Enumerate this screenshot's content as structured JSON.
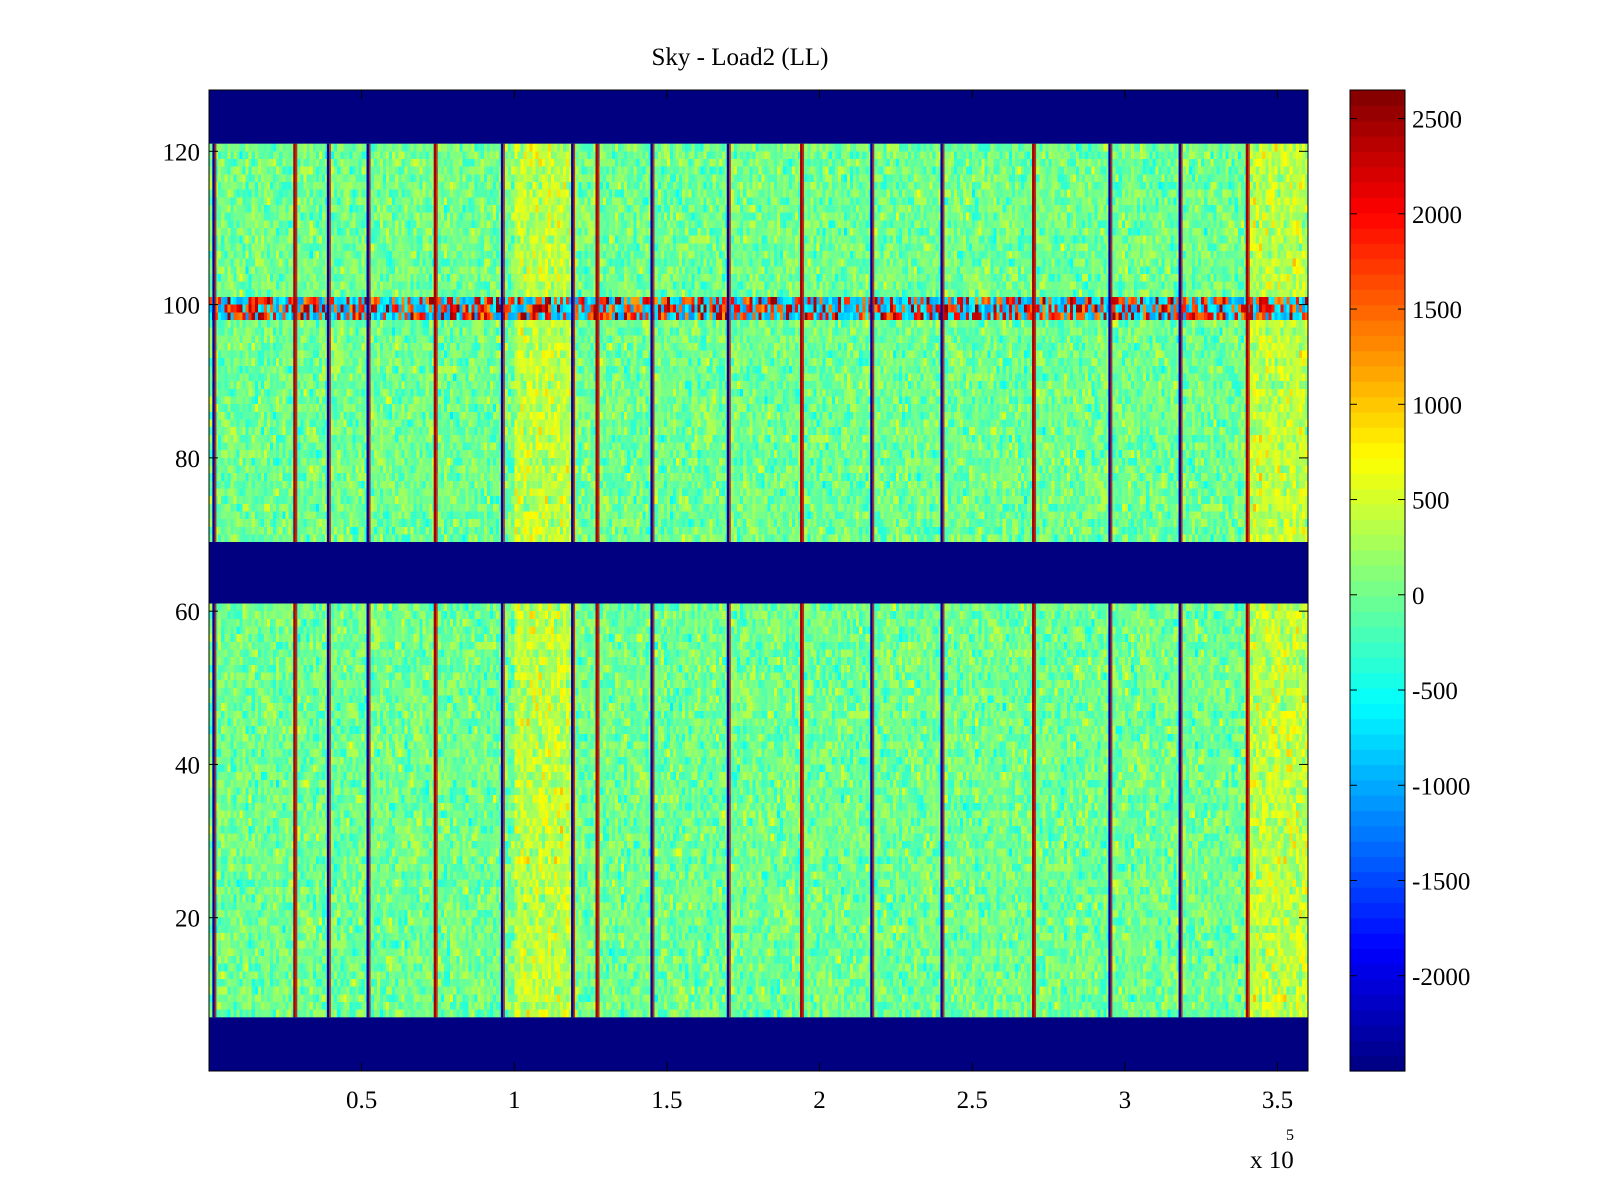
{
  "chart_data": {
    "type": "heatmap",
    "title": "Sky - Load2 (LL)",
    "xlabel": "",
    "ylabel": "",
    "x_multiplier_label": "x 10",
    "x_multiplier_exponent": "5",
    "xlim": [
      0,
      360000
    ],
    "ylim": [
      0,
      128
    ],
    "x_ticks": [
      {
        "value": 50000,
        "label": "0.5"
      },
      {
        "value": 100000,
        "label": "1"
      },
      {
        "value": 150000,
        "label": "1.5"
      },
      {
        "value": 200000,
        "label": "2"
      },
      {
        "value": 250000,
        "label": "2.5"
      },
      {
        "value": 300000,
        "label": "3"
      },
      {
        "value": 350000,
        "label": "3.5"
      }
    ],
    "y_ticks": [
      {
        "value": 20,
        "label": "20"
      },
      {
        "value": 40,
        "label": "40"
      },
      {
        "value": 60,
        "label": "60"
      },
      {
        "value": 80,
        "label": "80"
      },
      {
        "value": 100,
        "label": "100"
      },
      {
        "value": 120,
        "label": "120"
      }
    ],
    "colorbar": {
      "colormap": "jet",
      "range": [
        -2500,
        2650
      ],
      "ticks": [
        {
          "value": 2500,
          "label": "2500"
        },
        {
          "value": 2000,
          "label": "2000"
        },
        {
          "value": 1500,
          "label": "1500"
        },
        {
          "value": 1000,
          "label": "1000"
        },
        {
          "value": 500,
          "label": "500"
        },
        {
          "value": 0,
          "label": "0"
        },
        {
          "value": -500,
          "label": "-500"
        },
        {
          "value": -1000,
          "label": "-1000"
        },
        {
          "value": -1500,
          "label": "-1500"
        },
        {
          "value": -2000,
          "label": "-2000"
        }
      ]
    },
    "masked_channel_bands": [
      [
        0,
        7
      ],
      [
        61,
        69
      ],
      [
        121,
        128
      ]
    ],
    "noisy_channel_band": [
      98,
      101
    ],
    "high_variance_x_regions": [
      [
        100000,
        120000
      ],
      [
        340000,
        360000
      ]
    ],
    "vertical_stripe_x": [
      1500,
      28000,
      39000,
      52000,
      74000,
      96000,
      119000,
      127000,
      145000,
      170000,
      194000,
      217000,
      240000,
      270000,
      295000,
      318000,
      340000
    ],
    "base_value_mean": 0,
    "grid": false
  }
}
